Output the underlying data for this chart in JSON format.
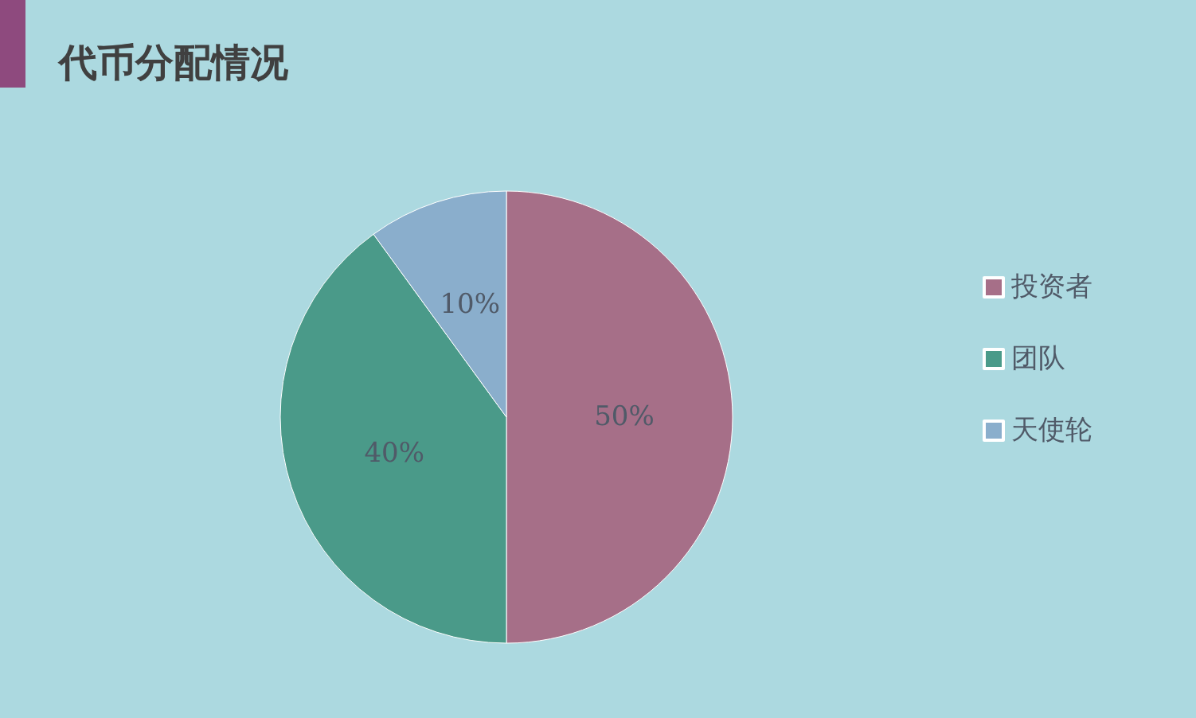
{
  "chart_data": {
    "type": "pie",
    "title": "代币分配情况",
    "categories": [
      "投资者",
      "团队",
      "天使轮"
    ],
    "values": [
      50,
      40,
      10
    ],
    "colors": [
      "#a66f88",
      "#4a9a89",
      "#8aaecc"
    ],
    "value_labels": [
      "50%",
      "40%",
      "10%"
    ],
    "legend": "right"
  }
}
